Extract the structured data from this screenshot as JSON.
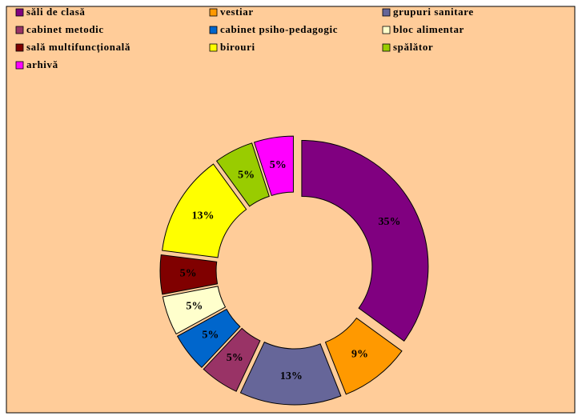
{
  "chart_data": {
    "type": "doughnut",
    "categories": [
      "săli de clasă",
      "vestiar",
      "grupuri sanitare",
      "cabinet metodic",
      "cabinet psiho-pedagogic",
      "bloc alimentar",
      "sală multifuncțională",
      "birouri",
      "spălător",
      "arhivă"
    ],
    "values": [
      35,
      9,
      13,
      5,
      5,
      5,
      5,
      13,
      5,
      5
    ],
    "value_labels": [
      "35%",
      "9%",
      "13%",
      "5%",
      "5%",
      "5%",
      "5%",
      "13%",
      "5%",
      "5%"
    ],
    "colors": [
      "#800080",
      "#FF9900",
      "#666699",
      "#993366",
      "#0066CC",
      "#FFFFCC",
      "#800000",
      "#FFFF00",
      "#99CC00",
      "#FF00FF"
    ]
  }
}
